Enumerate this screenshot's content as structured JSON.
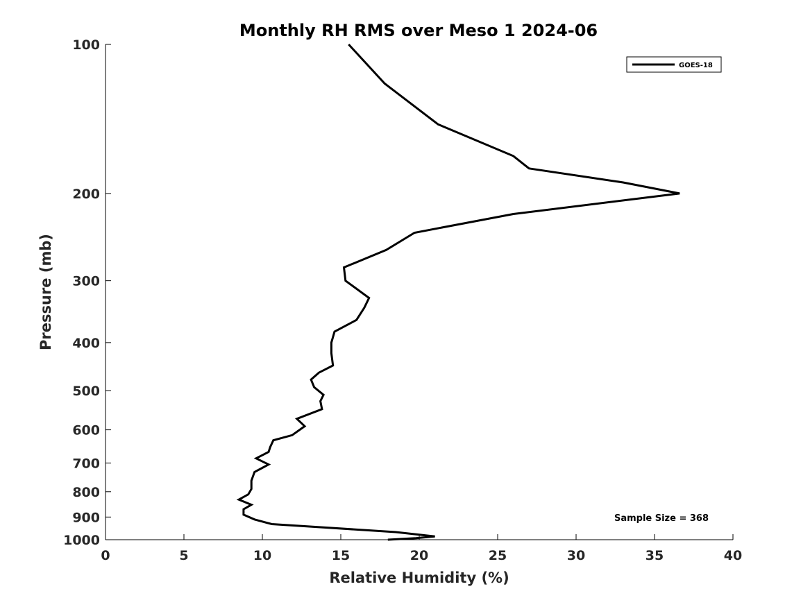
{
  "chart_data": {
    "type": "line",
    "title": "Monthly RH RMS over Meso 1  2024-06",
    "xlabel": "Relative Humidity (%)",
    "ylabel": "Pressure (mb)",
    "xlim": [
      0,
      40
    ],
    "ylim": [
      100,
      1000
    ],
    "y_scale": "log",
    "y_reversed": true,
    "x_ticks": [
      0,
      5,
      10,
      15,
      20,
      25,
      30,
      35,
      40
    ],
    "y_ticks": [
      100,
      200,
      300,
      400,
      500,
      600,
      700,
      800,
      900,
      1000
    ],
    "grid": false,
    "legend_position": "top-right",
    "annotation": "Sample Size = 368",
    "series": [
      {
        "name": "GOES-18",
        "color": "#000000",
        "x": [
          15.5,
          17.8,
          21.2,
          26.0,
          27.0,
          33.0,
          36.6,
          26.0,
          19.7,
          17.9,
          15.2,
          15.3,
          16.8,
          16.5,
          16.0,
          14.6,
          14.4,
          14.4,
          14.5,
          13.6,
          13.1,
          13.3,
          13.9,
          13.7,
          13.8,
          12.2,
          12.7,
          11.9,
          10.7,
          10.5,
          10.4,
          9.6,
          10.4,
          9.5,
          9.3,
          9.3,
          9.1,
          8.5,
          9.3,
          8.8,
          8.8,
          9.5,
          10.6,
          18.5,
          21.0,
          19.8,
          18.0
        ],
        "y": [
          100,
          120,
          145,
          168,
          178,
          190,
          200,
          220,
          240,
          260,
          282,
          300,
          325,
          340,
          360,
          380,
          400,
          420,
          445,
          460,
          475,
          492,
          510,
          525,
          545,
          570,
          590,
          615,
          630,
          650,
          665,
          685,
          705,
          730,
          760,
          790,
          810,
          830,
          850,
          868,
          890,
          910,
          930,
          965,
          985,
          993,
          1000
        ]
      }
    ]
  }
}
